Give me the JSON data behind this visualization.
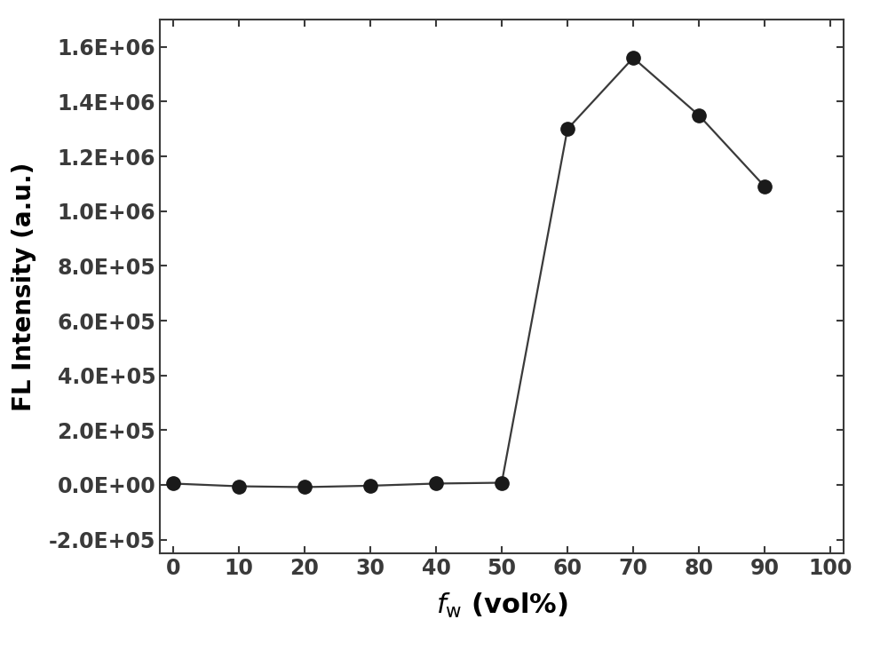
{
  "x": [
    0,
    10,
    20,
    30,
    40,
    50,
    60,
    70,
    80,
    90
  ],
  "y": [
    5000,
    -5000,
    -8000,
    -3000,
    5000,
    8000,
    1300000,
    1560000,
    1350000,
    1090000
  ],
  "xlabel": "$f_{\\mathrm{w}}$ (vol%)",
  "ylabel": "FL Intensity (a.u.)",
  "xlim": [
    -2,
    102
  ],
  "ylim": [
    -250000,
    1700000
  ],
  "xticks": [
    0,
    10,
    20,
    30,
    40,
    50,
    60,
    70,
    80,
    90,
    100
  ],
  "yticks": [
    -200000,
    0,
    200000,
    400000,
    600000,
    800000,
    1000000,
    1200000,
    1400000,
    1600000
  ],
  "ytick_labels": [
    "-2.0E+05",
    "0.0E+00",
    "2.0E+05",
    "4.0E+05",
    "6.0E+05",
    "8.0E+05",
    "1.0E+06",
    "1.2E+06",
    "1.4E+06",
    "1.6E+06"
  ],
  "line_color": "#3a3a3a",
  "marker_color": "#1a1a1a",
  "marker_size": 11,
  "line_width": 1.6,
  "background_color": "#ffffff",
  "ylabel_fontsize": 20,
  "xlabel_fontsize": 22,
  "tick_fontsize": 17,
  "spine_linewidth": 1.5
}
